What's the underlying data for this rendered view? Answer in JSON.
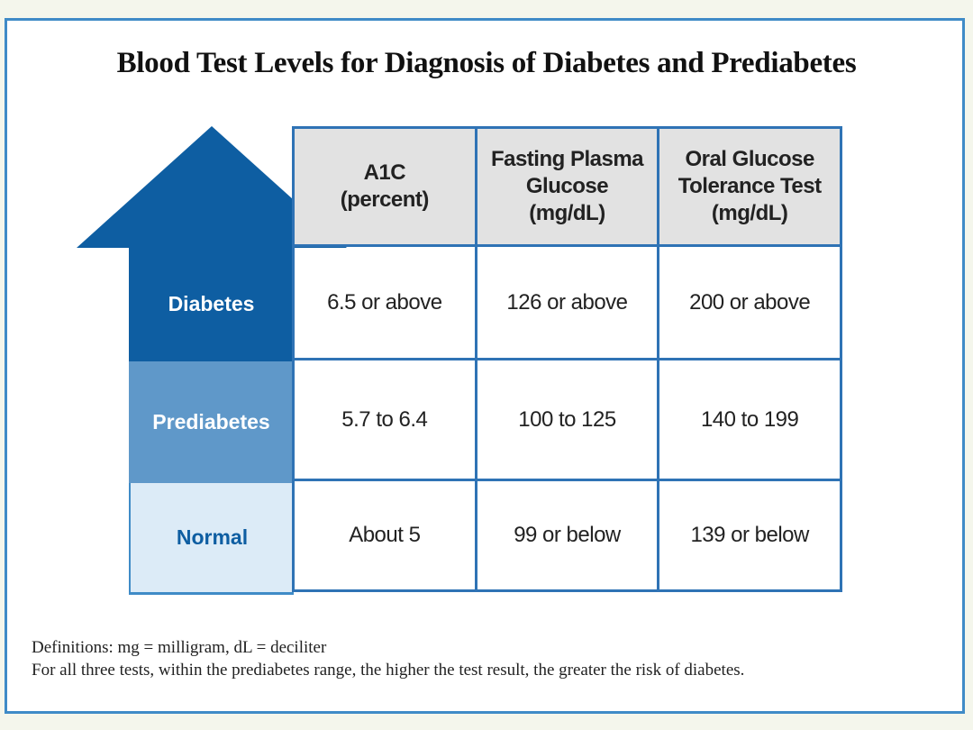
{
  "title": "Blood Test Levels for Diagnosis of Diabetes and Prediabetes",
  "columns": [
    {
      "line1": "A1C",
      "line2": "(percent)",
      "line3": ""
    },
    {
      "line1": "Fasting Plasma",
      "line2": "Glucose",
      "line3": "(mg/dL)"
    },
    {
      "line1": "Oral Glucose",
      "line2": "Tolerance Test",
      "line3": "(mg/dL)"
    }
  ],
  "rows": [
    {
      "label": "Diabetes",
      "values": [
        "6.5 or above",
        "126 or above",
        "200 or above"
      ]
    },
    {
      "label": "Prediabetes",
      "values": [
        "5.7 to 6.4",
        "100 to 125",
        "140 to 199"
      ]
    },
    {
      "label": "Normal",
      "values": [
        "About 5",
        "99 or below",
        "139 or below"
      ]
    }
  ],
  "footnote": {
    "definitions": "Definitions:  mg = milligram, dL = deciliter",
    "note": "For all three tests, within the prediabetes range, the higher the test result, the greater the risk of diabetes."
  },
  "colors": {
    "diabetes": "#0e5ea2",
    "prediabetes": "#5f98c9",
    "normal": "#dcebf7",
    "border": "#2f73b5",
    "header": "#e2e2e2"
  }
}
